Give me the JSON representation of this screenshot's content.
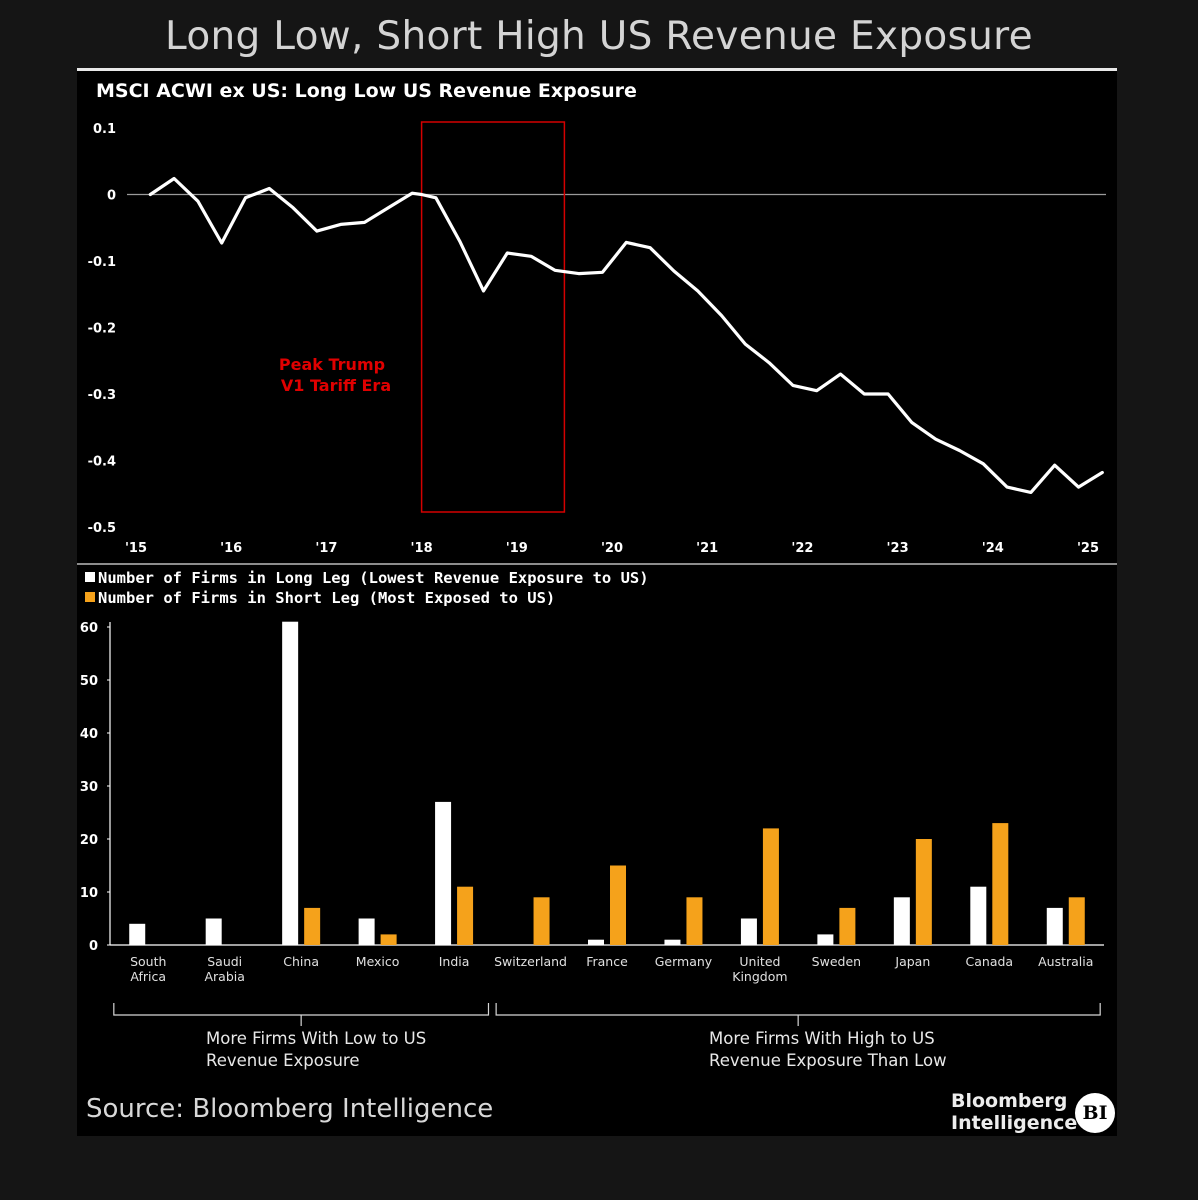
{
  "page_title": "Long Low, Short High US Revenue Exposure",
  "source": "Source: Bloomberg Intelligence",
  "brand": {
    "line1": "Bloomberg",
    "line2": "Intelligence",
    "logo": "BI"
  },
  "colors": {
    "background": "#000000",
    "line": "#ffffff",
    "long_bar": "#ffffff",
    "short_bar": "#f5a21b",
    "annotation": "#e00000",
    "axis_text": "#ffffff"
  },
  "chart_data": [
    {
      "type": "line",
      "title": "MSCI ACWI ex US: Long Low US Revenue Exposure",
      "ylim": [
        -0.5,
        0.1
      ],
      "y_ticks": [
        0.1,
        0,
        -0.1,
        -0.2,
        -0.3,
        -0.4,
        -0.5
      ],
      "y_tick_labels": [
        "0.1",
        "0",
        "-0.1",
        "-0.2",
        "-0.3",
        "-0.4",
        "-0.5"
      ],
      "xlim": [
        2015,
        2025.2
      ],
      "x_ticks": [
        2015,
        2016,
        2017,
        2018,
        2019,
        2020,
        2021,
        2022,
        2023,
        2024,
        2025
      ],
      "x_tick_labels": [
        "'15",
        "'16",
        "'17",
        "'18",
        "'19",
        "'20",
        "'21",
        "'22",
        "'23",
        "'24",
        "'25"
      ],
      "reference_line": 0,
      "annotation": {
        "line1": "Peak Trump",
        "line2": "V1 Tariff Era",
        "x_range": [
          2018.0,
          2019.5
        ]
      },
      "series": [
        {
          "name": "Long Low US Revenue Exposure",
          "x": [
            2015.15,
            2015.4,
            2015.65,
            2015.9,
            2016.15,
            2016.4,
            2016.65,
            2016.9,
            2017.15,
            2017.4,
            2017.65,
            2017.9,
            2018.0,
            2018.15,
            2018.4,
            2018.65,
            2018.9,
            2019.15,
            2019.4,
            2019.65,
            2019.9,
            2020.15,
            2020.4,
            2020.65,
            2020.9,
            2021.15,
            2021.4,
            2021.65,
            2021.9,
            2022.15,
            2022.4,
            2022.65,
            2022.9,
            2023.15,
            2023.4,
            2023.65,
            2023.9,
            2024.15,
            2024.4,
            2024.65,
            2024.9,
            2025.15
          ],
          "y": [
            0.0,
            0.024,
            -0.01,
            -0.073,
            -0.005,
            0.009,
            -0.02,
            -0.055,
            -0.045,
            -0.042,
            -0.02,
            0.002,
            0.0,
            -0.005,
            -0.07,
            -0.145,
            -0.088,
            -0.093,
            -0.114,
            -0.119,
            -0.117,
            -0.072,
            -0.08,
            -0.115,
            -0.145,
            -0.182,
            -0.225,
            -0.253,
            -0.287,
            -0.295,
            -0.27,
            -0.3,
            -0.3,
            -0.343,
            -0.368,
            -0.385,
            -0.405,
            -0.44,
            -0.448,
            -0.407,
            -0.44,
            -0.418
          ]
        }
      ]
    },
    {
      "type": "bar",
      "legend": [
        "Number of Firms in Long Leg (Lowest Revenue Exposure to US)",
        "Number of Firms in Short Leg (Most Exposed to US)"
      ],
      "ylim": [
        0,
        60
      ],
      "y_ticks": [
        0,
        10,
        20,
        30,
        40,
        50,
        60
      ],
      "y_tick_labels": [
        "0",
        "10",
        "20",
        "30",
        "40",
        "50",
        "60"
      ],
      "categories": [
        "South Africa",
        "Saudi Arabia",
        "China",
        "Mexico",
        "India",
        "Switzerland",
        "France",
        "Germany",
        "United Kingdom",
        "Sweden",
        "Japan",
        "Canada",
        "Australia"
      ],
      "category_labels": [
        [
          "South",
          "Africa"
        ],
        [
          "Saudi",
          "Arabia"
        ],
        [
          "China"
        ],
        [
          "Mexico"
        ],
        [
          "India"
        ],
        [
          "Switzerland"
        ],
        [
          "France"
        ],
        [
          "Germany"
        ],
        [
          "United",
          "Kingdom"
        ],
        [
          "Sweden"
        ],
        [
          "Japan"
        ],
        [
          "Canada"
        ],
        [
          "Australia"
        ]
      ],
      "series": [
        {
          "name": "Number of Firms in Long Leg (Lowest Revenue Exposure to US)",
          "values": [
            4,
            5,
            61,
            5,
            27,
            0,
            1,
            1,
            5,
            2,
            9,
            11,
            7
          ]
        },
        {
          "name": "Number of Firms in Short Leg (Most Exposed to US)",
          "values": [
            0,
            0,
            7,
            2,
            11,
            9,
            15,
            9,
            22,
            7,
            20,
            23,
            9
          ]
        }
      ],
      "groups": [
        {
          "line1": "More Firms With Low to US",
          "line2": "Revenue Exposure",
          "first": 0,
          "last": 4
        },
        {
          "line1": "More Firms With High to US",
          "line2": "Revenue Exposure Than Low",
          "first": 5,
          "last": 12
        }
      ]
    }
  ]
}
